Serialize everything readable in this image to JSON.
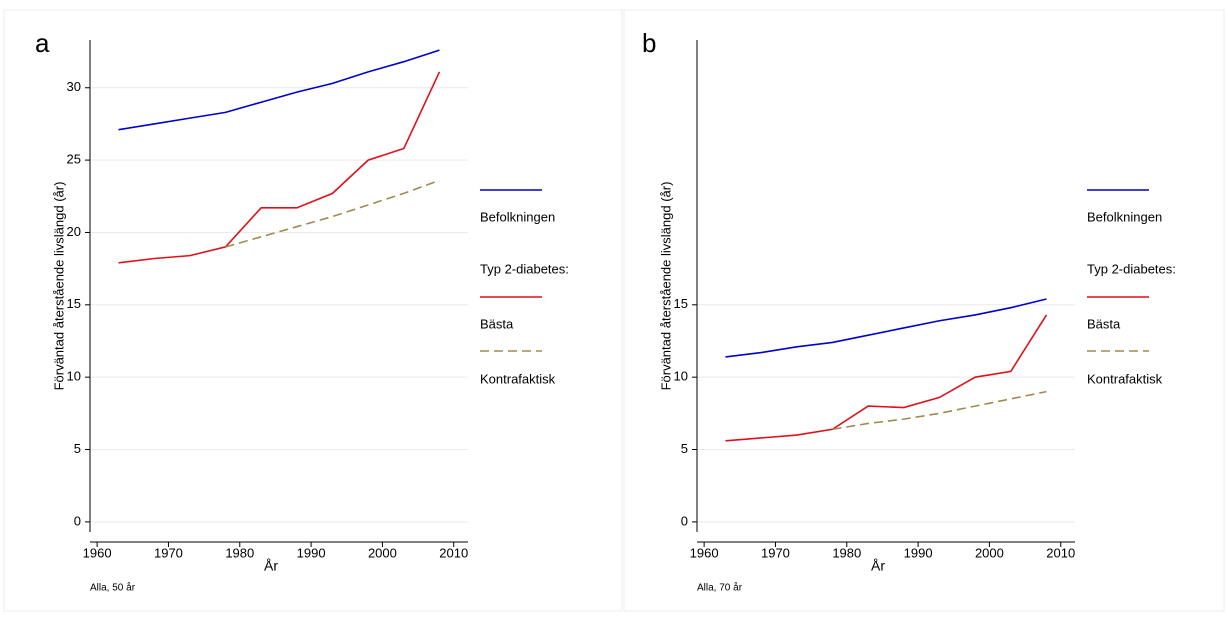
{
  "chart_data": [
    {
      "type": "line",
      "panel_label": "a",
      "note": "Alla, 50 år",
      "x_label": "År",
      "y_label": "Förväntad återstående livslängd (år)",
      "legend_title": "Typ 2-diabetes:",
      "x": [
        1963,
        1968,
        1973,
        1978,
        1983,
        1988,
        1993,
        1998,
        2003,
        2008
      ],
      "xlim": [
        1959,
        2012
      ],
      "xticks": [
        1960,
        1970,
        1980,
        1990,
        2000,
        2010
      ],
      "ylim": [
        -0.7,
        33.3
      ],
      "yticks": [
        0,
        5,
        10,
        15,
        20,
        25,
        30
      ],
      "grid": true,
      "series": [
        {
          "name": "Befolkningen",
          "color": "#0000cc",
          "dash": false,
          "values": [
            27.1,
            27.5,
            27.9,
            28.3,
            29.0,
            29.7,
            30.3,
            31.1,
            31.8,
            32.6
          ]
        },
        {
          "name": "Bästa",
          "color": "#e0101a",
          "dash": false,
          "values": [
            17.9,
            18.2,
            18.4,
            19.0,
            21.7,
            21.7,
            22.7,
            25.0,
            25.8,
            31.1
          ]
        },
        {
          "name": "Kontrafaktisk",
          "color": "#a08a50",
          "dash": true,
          "values": [
            null,
            null,
            null,
            19.0,
            19.7,
            20.4,
            21.1,
            21.9,
            22.7,
            23.6
          ]
        }
      ]
    },
    {
      "type": "line",
      "panel_label": "b",
      "note": "Alla, 70 år",
      "x_label": "År",
      "y_label": "Förväntad återstående livslängd (år)",
      "legend_title": "Typ 2-diabetes:",
      "x": [
        1963,
        1968,
        1973,
        1978,
        1983,
        1988,
        1993,
        1998,
        2003,
        2008
      ],
      "xlim": [
        1959,
        2012
      ],
      "xticks": [
        1960,
        1970,
        1980,
        1990,
        2000,
        2010
      ],
      "ylim": [
        -0.7,
        33.3
      ],
      "yticks": [
        0,
        5,
        10,
        15
      ],
      "grid": true,
      "series": [
        {
          "name": "Befolkningen",
          "color": "#0000cc",
          "dash": false,
          "values": [
            11.4,
            11.7,
            12.1,
            12.4,
            12.9,
            13.4,
            13.9,
            14.3,
            14.8,
            15.4
          ]
        },
        {
          "name": "Bästa",
          "color": "#e0101a",
          "dash": false,
          "values": [
            5.6,
            5.8,
            6.0,
            6.4,
            8.0,
            7.9,
            8.6,
            10.0,
            10.4,
            14.3
          ]
        },
        {
          "name": "Kontrafaktisk",
          "color": "#a08a50",
          "dash": true,
          "values": [
            null,
            null,
            null,
            6.4,
            6.8,
            7.1,
            7.5,
            8.0,
            8.5,
            9.0
          ]
        }
      ]
    }
  ]
}
